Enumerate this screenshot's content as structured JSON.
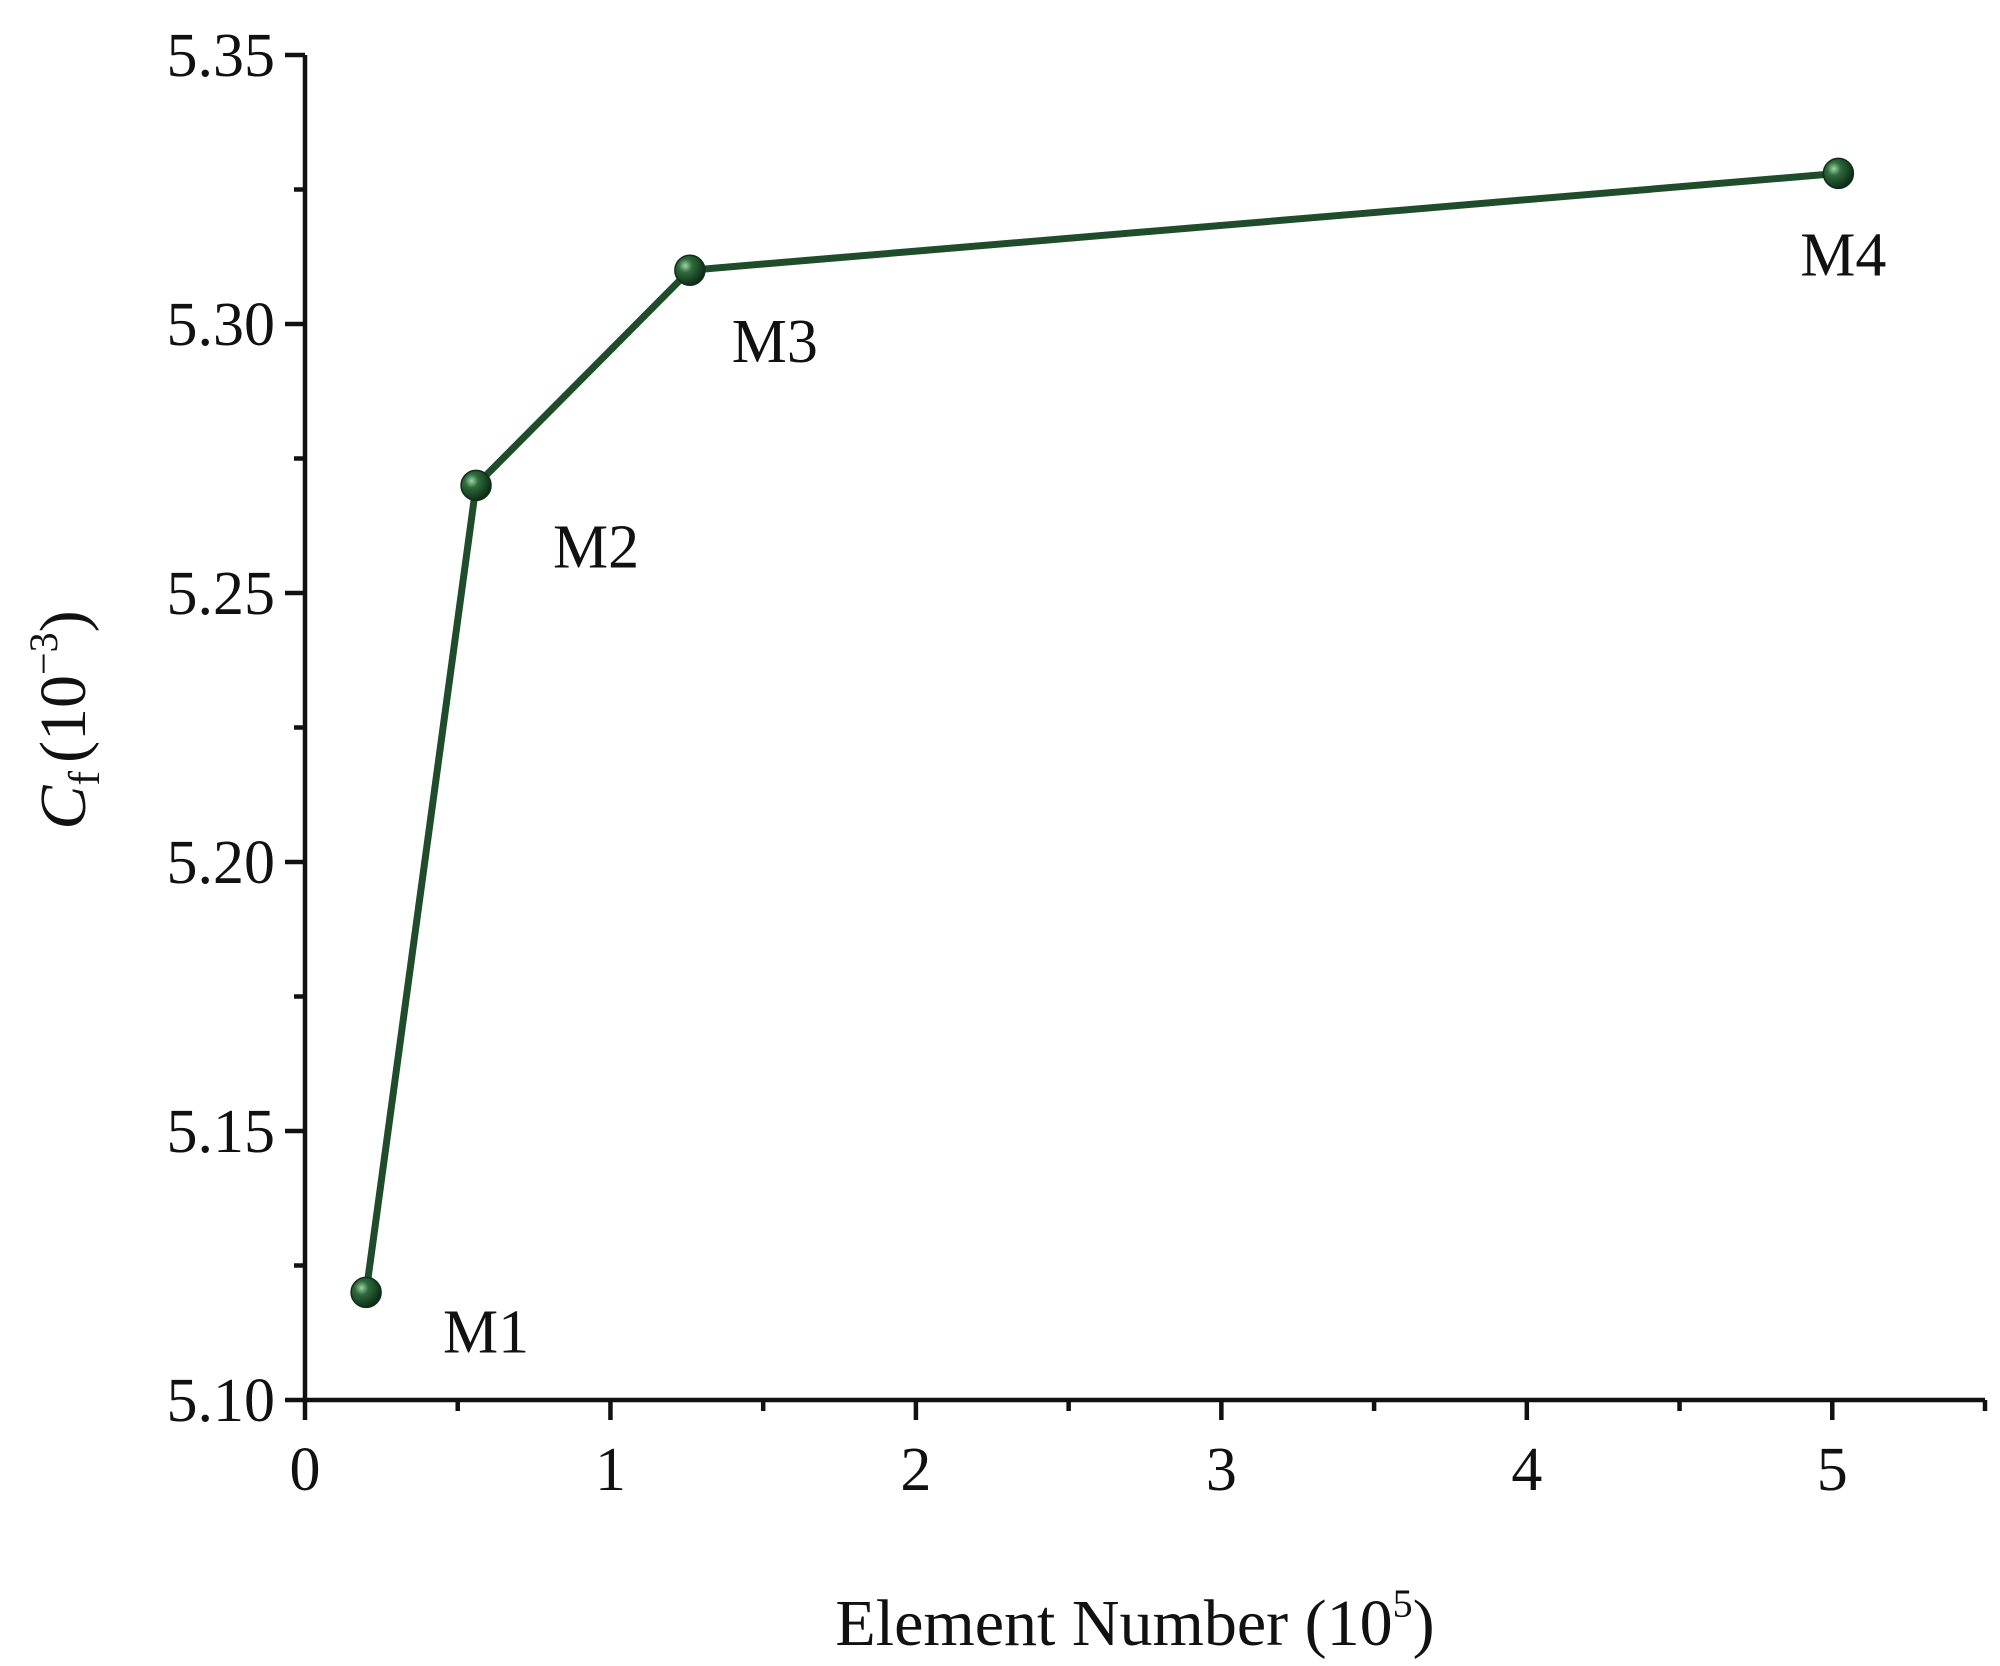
{
  "chart_data": {
    "type": "line",
    "xlabel": {
      "base": "Element Number (10",
      "exp": "5",
      "close": ")"
    },
    "ylabel": {
      "symbol": "C",
      "subscript": "f",
      "unit_base": "(10",
      "unit_exp": "−3",
      "unit_close": ")"
    },
    "xlim": [
      0,
      5.5
    ],
    "ylim": [
      5.1,
      5.35
    ],
    "x_ticks": [
      0,
      1,
      2,
      3,
      4,
      5
    ],
    "x_tick_labels": [
      "0",
      "1",
      "2",
      "3",
      "4",
      "5"
    ],
    "x_minor_ticks": [
      0.5,
      1.5,
      2.5,
      3.5,
      4.5,
      5.5
    ],
    "y_ticks": [
      5.1,
      5.15,
      5.2,
      5.25,
      5.3,
      5.35
    ],
    "y_tick_labels": [
      "5.10",
      "5.15",
      "5.20",
      "5.25",
      "5.30",
      "5.35"
    ],
    "y_minor_ticks": [
      5.125,
      5.175,
      5.225,
      5.275,
      5.325
    ],
    "series": [
      {
        "x": [
          0.2,
          0.56,
          1.26,
          5.02
        ],
        "y": [
          5.12,
          5.27,
          5.31,
          5.328
        ],
        "point_labels": [
          "M1",
          "M2",
          "M3",
          "M4"
        ],
        "color": "#1f4d2b"
      }
    ],
    "grid": false
  }
}
